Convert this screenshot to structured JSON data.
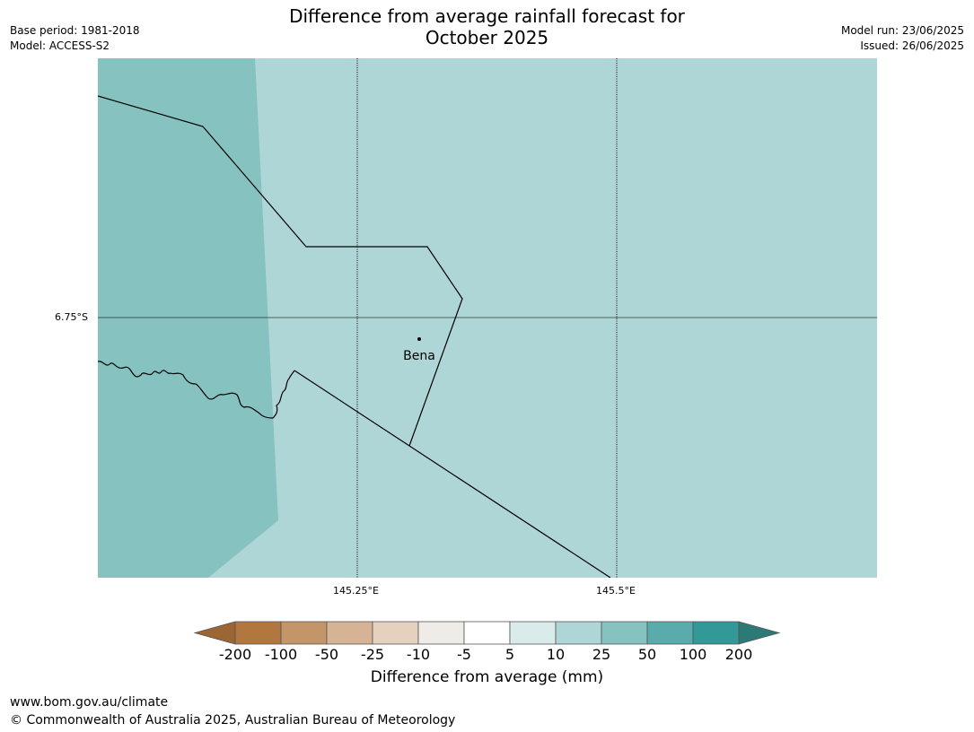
{
  "header": {
    "title_line1": "Difference from average rainfall forecast for",
    "title_line2": "October 2025",
    "base_period": "Base period: 1981-2018",
    "model": "Model: ACCESS-S2",
    "model_run": "Model run: 23/06/2025",
    "issued": "Issued: 26/06/2025"
  },
  "map": {
    "latitude_label": "6.75°S",
    "longitude_labels": [
      "145.25°E",
      "145.5°E"
    ],
    "place": "Bena",
    "colors": {
      "zone_25_50": "#86c2c0",
      "zone_10_25": "#aed6d6",
      "boundary": "#000000",
      "gridline": "#000000"
    },
    "region_categories": [
      "25 to 50 mm",
      "10 to 25 mm"
    ]
  },
  "legend": {
    "title": "Difference from average (mm)",
    "ticks": [
      "-200",
      "-100",
      "-50",
      "-25",
      "-10",
      "-5",
      "5",
      "10",
      "25",
      "50",
      "100",
      "200"
    ],
    "colors": [
      "#9c6634",
      "#b1773e",
      "#c49569",
      "#d5b394",
      "#e6d1be",
      "#efebe7",
      "#ffffff",
      "#d9ebeb",
      "#aed6d6",
      "#86c2c0",
      "#5aabab",
      "#339998",
      "#2b7a78"
    ]
  },
  "footer": {
    "url": "www.bom.gov.au/climate",
    "copyright": "© Commonwealth of Australia 2025, Australian Bureau of Meteorology"
  }
}
